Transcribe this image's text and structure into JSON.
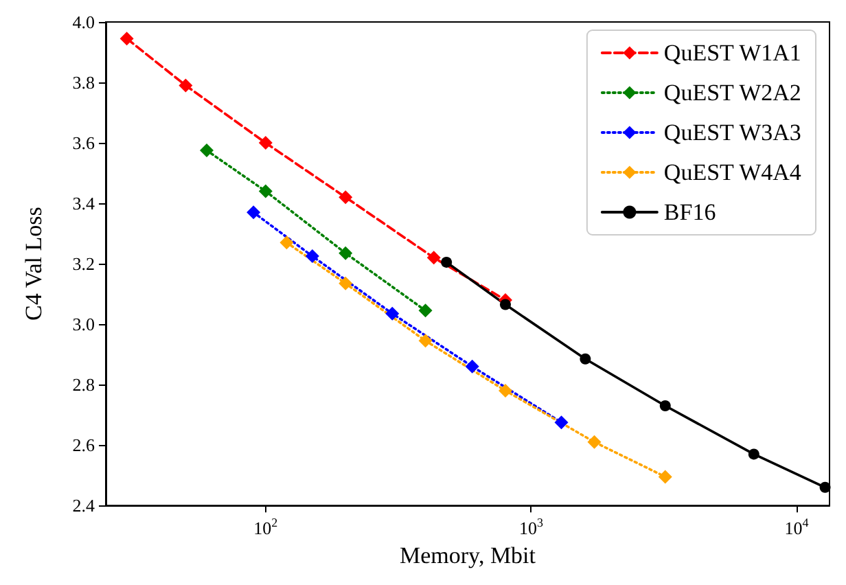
{
  "chart_data": {
    "type": "line",
    "xlabel": "Memory, Mbit",
    "ylabel": "C4 Val Loss",
    "log": "x",
    "xlim": [
      25,
      13300
    ],
    "xticks": [
      {
        "value": 100,
        "label": "10$^{2}$"
      },
      {
        "value": 1000,
        "label": "10$^{3}$"
      },
      {
        "value": 10000,
        "label": "10$^{4}$"
      }
    ],
    "ylim": [
      2.4,
      4.0
    ],
    "yticks": [
      2.4,
      2.6,
      2.8,
      {
        "value": 3,
        "label": "3.0"
      },
      3.2,
      3.4,
      3.6,
      3.8,
      {
        "value": 4,
        "label": "4.0"
      }
    ],
    "grid": false,
    "legend": "top right",
    "series": [
      {
        "name": "QuEST W1A1",
        "color": "#ff0000",
        "marker": "diamond",
        "line_style": "dashed",
        "x": [
          30,
          50,
          100,
          200,
          430,
          800
        ],
        "values": [
          3.945,
          3.79,
          3.6,
          3.42,
          3.22,
          3.08
        ]
      },
      {
        "name": "QuEST W2A2",
        "color": "#008000",
        "marker": "diamond",
        "line_style": "dotted",
        "x": [
          60,
          100,
          200,
          400
        ],
        "values": [
          3.575,
          3.44,
          3.235,
          3.045
        ]
      },
      {
        "name": "QuEST W3A3",
        "color": "#0000ff",
        "marker": "diamond",
        "line_style": "dotted",
        "x": [
          90,
          150,
          300,
          600,
          1300
        ],
        "values": [
          3.37,
          3.225,
          3.035,
          2.86,
          2.675
        ]
      },
      {
        "name": "QuEST W4A4",
        "color": "#ffa500",
        "marker": "diamond",
        "line_style": "dotted",
        "x": [
          120,
          200,
          400,
          800,
          1730,
          3200
        ],
        "values": [
          3.27,
          3.135,
          2.945,
          2.78,
          2.61,
          2.495
        ]
      },
      {
        "name": "BF16",
        "color": "#000000",
        "marker": "circle",
        "line_style": "solid",
        "x": [
          480,
          800,
          1600,
          3200,
          6900,
          12800
        ],
        "values": [
          3.205,
          3.065,
          2.885,
          2.73,
          2.57,
          2.46
        ]
      }
    ]
  }
}
